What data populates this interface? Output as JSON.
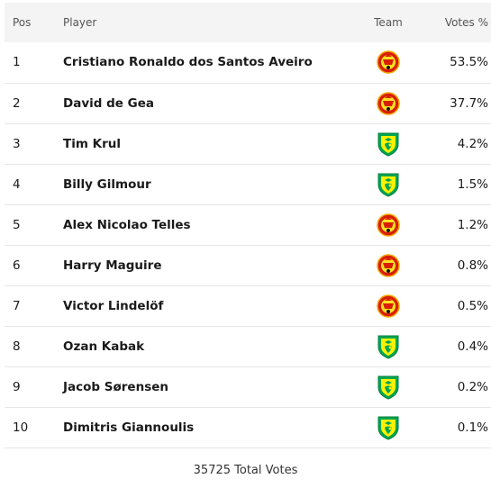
{
  "header": {
    "pos": "Pos",
    "player": "Player",
    "team": "Team",
    "votes": "Votes %"
  },
  "rows": [
    {
      "pos": "1",
      "player": "Cristiano Ronaldo dos Santos Aveiro",
      "team_icon": "man-utd-crest-icon",
      "votes": "53.5%"
    },
    {
      "pos": "2",
      "player": "David de Gea",
      "team_icon": "man-utd-crest-icon",
      "votes": "37.7%"
    },
    {
      "pos": "3",
      "player": "Tim Krul",
      "team_icon": "norwich-crest-icon",
      "votes": "4.2%"
    },
    {
      "pos": "4",
      "player": "Billy Gilmour",
      "team_icon": "norwich-crest-icon",
      "votes": "1.5%"
    },
    {
      "pos": "5",
      "player": "Alex Nicolao Telles",
      "team_icon": "man-utd-crest-icon",
      "votes": "1.2%"
    },
    {
      "pos": "6",
      "player": "Harry Maguire",
      "team_icon": "man-utd-crest-icon",
      "votes": "0.8%"
    },
    {
      "pos": "7",
      "player": "Victor Lindelöf",
      "team_icon": "man-utd-crest-icon",
      "votes": "0.5%"
    },
    {
      "pos": "8",
      "player": "Ozan Kabak",
      "team_icon": "norwich-crest-icon",
      "votes": "0.4%"
    },
    {
      "pos": "9",
      "player": "Jacob Sørensen",
      "team_icon": "norwich-crest-icon",
      "votes": "0.2%"
    },
    {
      "pos": "10",
      "player": "Dimitris Giannoulis",
      "team_icon": "norwich-crest-icon",
      "votes": "0.1%"
    }
  ],
  "footer": {
    "total_votes": "35725 Total Votes"
  },
  "colors": {
    "man_utd_red": "#d81e05",
    "man_utd_gold": "#fbe122",
    "norwich_green": "#00a650",
    "norwich_yellow": "#fff200"
  }
}
